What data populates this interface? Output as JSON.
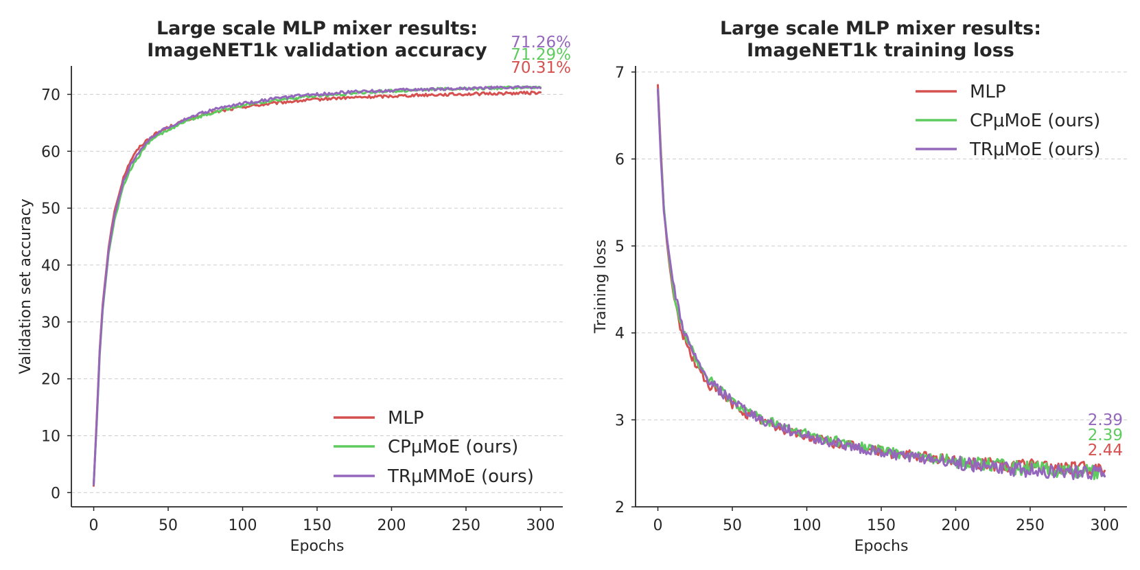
{
  "chart_data": [
    {
      "type": "line",
      "title_line1": "Large scale MLP mixer results:",
      "title_line2": "ImageNET1k validation accuracy",
      "xlabel": "Epochs",
      "ylabel": "Validation set accuracy",
      "xlim": [
        -15,
        315
      ],
      "ylim": [
        -2.5,
        75
      ],
      "xticks": [
        0,
        50,
        100,
        150,
        200,
        250,
        300
      ],
      "yticks": [
        0,
        10,
        20,
        30,
        40,
        50,
        60,
        70
      ],
      "grid": "horizontal",
      "legend_position": "lower-right",
      "series": [
        {
          "name": "MLP",
          "color": "#d65050",
          "x": [
            0,
            2,
            4,
            6,
            8,
            10,
            12,
            14,
            16,
            18,
            20,
            25,
            30,
            35,
            40,
            45,
            50,
            60,
            70,
            80,
            90,
            100,
            110,
            120,
            130,
            140,
            150,
            160,
            170,
            180,
            190,
            200,
            210,
            220,
            230,
            240,
            250,
            260,
            270,
            280,
            290,
            300
          ],
          "y": [
            1.2,
            13,
            25,
            33,
            38,
            43,
            46.5,
            49.5,
            51.5,
            53.5,
            55.5,
            58.5,
            60.5,
            61.8,
            62.8,
            63.6,
            64.2,
            65.3,
            66.1,
            66.8,
            67.3,
            67.8,
            68.1,
            68.4,
            68.7,
            68.9,
            69.1,
            69.3,
            69.4,
            69.5,
            69.6,
            69.7,
            69.8,
            69.9,
            69.95,
            70.0,
            70.05,
            70.1,
            70.15,
            70.2,
            70.25,
            70.31
          ]
        },
        {
          "name": "CPμMoE (ours)",
          "color": "#5ecb5e",
          "x": [
            0,
            2,
            4,
            6,
            8,
            10,
            12,
            14,
            16,
            18,
            20,
            25,
            30,
            35,
            40,
            45,
            50,
            60,
            70,
            80,
            90,
            100,
            110,
            120,
            130,
            140,
            150,
            160,
            170,
            180,
            190,
            200,
            210,
            220,
            230,
            240,
            250,
            260,
            270,
            280,
            290,
            300
          ],
          "y": [
            1.5,
            12,
            24,
            32,
            37,
            42,
            45,
            48,
            50,
            52,
            54,
            57,
            59,
            61,
            62.2,
            63,
            63.8,
            65,
            66,
            66.8,
            67.5,
            68,
            68.5,
            68.9,
            69.2,
            69.5,
            69.7,
            69.9,
            70.1,
            70.3,
            70.45,
            70.6,
            70.7,
            70.8,
            70.9,
            70.95,
            71.0,
            71.05,
            71.1,
            71.15,
            71.2,
            71.29
          ]
        },
        {
          "name": "TRμMMoE (ours)",
          "color": "#9467bd",
          "x": [
            0,
            2,
            4,
            6,
            8,
            10,
            12,
            14,
            16,
            18,
            20,
            25,
            30,
            35,
            40,
            45,
            50,
            60,
            70,
            80,
            90,
            100,
            110,
            120,
            130,
            140,
            150,
            160,
            170,
            180,
            190,
            200,
            210,
            220,
            230,
            240,
            250,
            260,
            270,
            280,
            290,
            300
          ],
          "y": [
            1.4,
            12.5,
            24.5,
            32.5,
            37.5,
            42.5,
            45.8,
            48.8,
            50.8,
            52.8,
            54.8,
            57.8,
            59.8,
            61.5,
            62.7,
            63.5,
            64.2,
            65.5,
            66.5,
            67.3,
            67.9,
            68.4,
            68.8,
            69.2,
            69.5,
            69.8,
            70.0,
            70.2,
            70.4,
            70.5,
            70.6,
            70.7,
            70.8,
            70.85,
            70.9,
            71.0,
            71.05,
            71.1,
            71.15,
            71.2,
            71.22,
            71.26
          ]
        }
      ],
      "annotations": [
        {
          "text": "71.26%",
          "color": "#9467bd"
        },
        {
          "text": "71.29%",
          "color": "#5ecb5e"
        },
        {
          "text": "70.31%",
          "color": "#d65050"
        }
      ]
    },
    {
      "type": "line",
      "title_line1": "Large scale MLP mixer results:",
      "title_line2": "ImageNET1k training loss",
      "xlabel": "Epochs",
      "ylabel": "Training loss",
      "xlim": [
        -15,
        315
      ],
      "ylim": [
        2,
        7.07
      ],
      "xticks": [
        0,
        50,
        100,
        150,
        200,
        250,
        300
      ],
      "yticks": [
        2,
        3,
        4,
        5,
        6,
        7
      ],
      "grid": "horizontal",
      "legend_position": "upper-right",
      "series": [
        {
          "name": "MLP",
          "color": "#d65050",
          "x": [
            0,
            2,
            4,
            6,
            8,
            10,
            12,
            14,
            16,
            18,
            20,
            25,
            30,
            35,
            40,
            45,
            50,
            60,
            70,
            80,
            90,
            100,
            110,
            120,
            130,
            140,
            150,
            160,
            170,
            180,
            190,
            200,
            210,
            220,
            230,
            240,
            250,
            260,
            270,
            280,
            290,
            300
          ],
          "y": [
            6.85,
            6.1,
            5.45,
            5.05,
            4.75,
            4.5,
            4.3,
            4.15,
            4.02,
            3.92,
            3.84,
            3.65,
            3.5,
            3.4,
            3.32,
            3.25,
            3.18,
            3.07,
            2.99,
            2.92,
            2.86,
            2.81,
            2.77,
            2.73,
            2.7,
            2.67,
            2.64,
            2.61,
            2.59,
            2.57,
            2.55,
            2.53,
            2.51,
            2.5,
            2.49,
            2.48,
            2.47,
            2.46,
            2.455,
            2.45,
            2.445,
            2.44
          ]
        },
        {
          "name": "CPμMoE (ours)",
          "color": "#5ecb5e",
          "x": [
            0,
            2,
            4,
            6,
            8,
            10,
            12,
            14,
            16,
            18,
            20,
            25,
            30,
            35,
            40,
            45,
            50,
            60,
            70,
            80,
            90,
            100,
            110,
            120,
            130,
            140,
            150,
            160,
            170,
            180,
            190,
            200,
            210,
            220,
            230,
            240,
            250,
            260,
            270,
            280,
            290,
            300
          ],
          "y": [
            6.8,
            6.05,
            5.45,
            5.1,
            4.8,
            4.55,
            4.38,
            4.22,
            4.1,
            4.0,
            3.92,
            3.72,
            3.56,
            3.45,
            3.37,
            3.3,
            3.23,
            3.1,
            3.01,
            2.94,
            2.88,
            2.83,
            2.79,
            2.75,
            2.71,
            2.68,
            2.65,
            2.62,
            2.6,
            2.57,
            2.55,
            2.53,
            2.51,
            2.49,
            2.47,
            2.45,
            2.44,
            2.43,
            2.42,
            2.41,
            2.4,
            2.39
          ]
        },
        {
          "name": "TRμMoE (ours)",
          "color": "#9467bd",
          "x": [
            0,
            2,
            4,
            6,
            8,
            10,
            12,
            14,
            16,
            18,
            20,
            25,
            30,
            35,
            40,
            45,
            50,
            60,
            70,
            80,
            90,
            100,
            110,
            120,
            130,
            140,
            150,
            160,
            170,
            180,
            190,
            200,
            210,
            220,
            230,
            240,
            250,
            260,
            270,
            280,
            290,
            300
          ],
          "y": [
            6.8,
            6.0,
            5.4,
            5.1,
            4.85,
            4.6,
            4.42,
            4.26,
            4.12,
            4.0,
            3.9,
            3.7,
            3.55,
            3.44,
            3.36,
            3.29,
            3.22,
            3.09,
            3.0,
            2.93,
            2.87,
            2.82,
            2.77,
            2.73,
            2.69,
            2.66,
            2.63,
            2.6,
            2.57,
            2.55,
            2.53,
            2.51,
            2.49,
            2.47,
            2.45,
            2.43,
            2.42,
            2.41,
            2.4,
            2.395,
            2.39,
            2.39
          ]
        }
      ],
      "annotations": [
        {
          "text": "2.39",
          "color": "#9467bd"
        },
        {
          "text": "2.39",
          "color": "#5ecb5e"
        },
        {
          "text": "2.44",
          "color": "#d65050"
        }
      ]
    }
  ]
}
